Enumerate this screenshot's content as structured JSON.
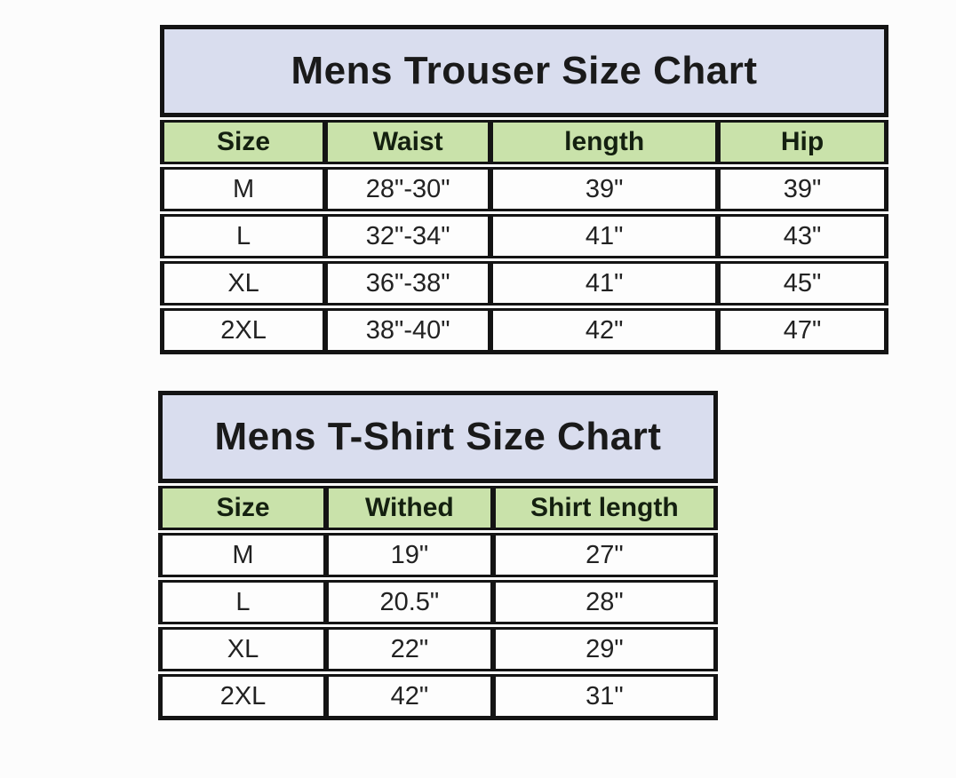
{
  "colors": {
    "title_bg": "#d9ddee",
    "header_bg": "#c9e2aa",
    "border": "#141414",
    "page_bg": "#fcfcfc"
  },
  "tables": [
    {
      "title": "Mens Trouser Size Chart",
      "columns": [
        "Size",
        "Waist",
        "length",
        "Hip"
      ],
      "rows": [
        [
          "M",
          "28\"-30\"",
          "39\"",
          "39\""
        ],
        [
          "L",
          "32\"-34\"",
          "41\"",
          "43\""
        ],
        [
          "XL",
          "36\"-38\"",
          "41\"",
          "45\""
        ],
        [
          "2XL",
          "38\"-40\"",
          "42\"",
          "47\""
        ]
      ]
    },
    {
      "title": "Mens T-Shirt Size Chart",
      "columns": [
        "Size",
        "Withed",
        "Shirt length"
      ],
      "rows": [
        [
          "M",
          "19\"",
          "27\""
        ],
        [
          "L",
          "20.5\"",
          "28\""
        ],
        [
          "XL",
          "22\"",
          "29\""
        ],
        [
          "2XL",
          "42\"",
          "31\""
        ]
      ]
    }
  ]
}
